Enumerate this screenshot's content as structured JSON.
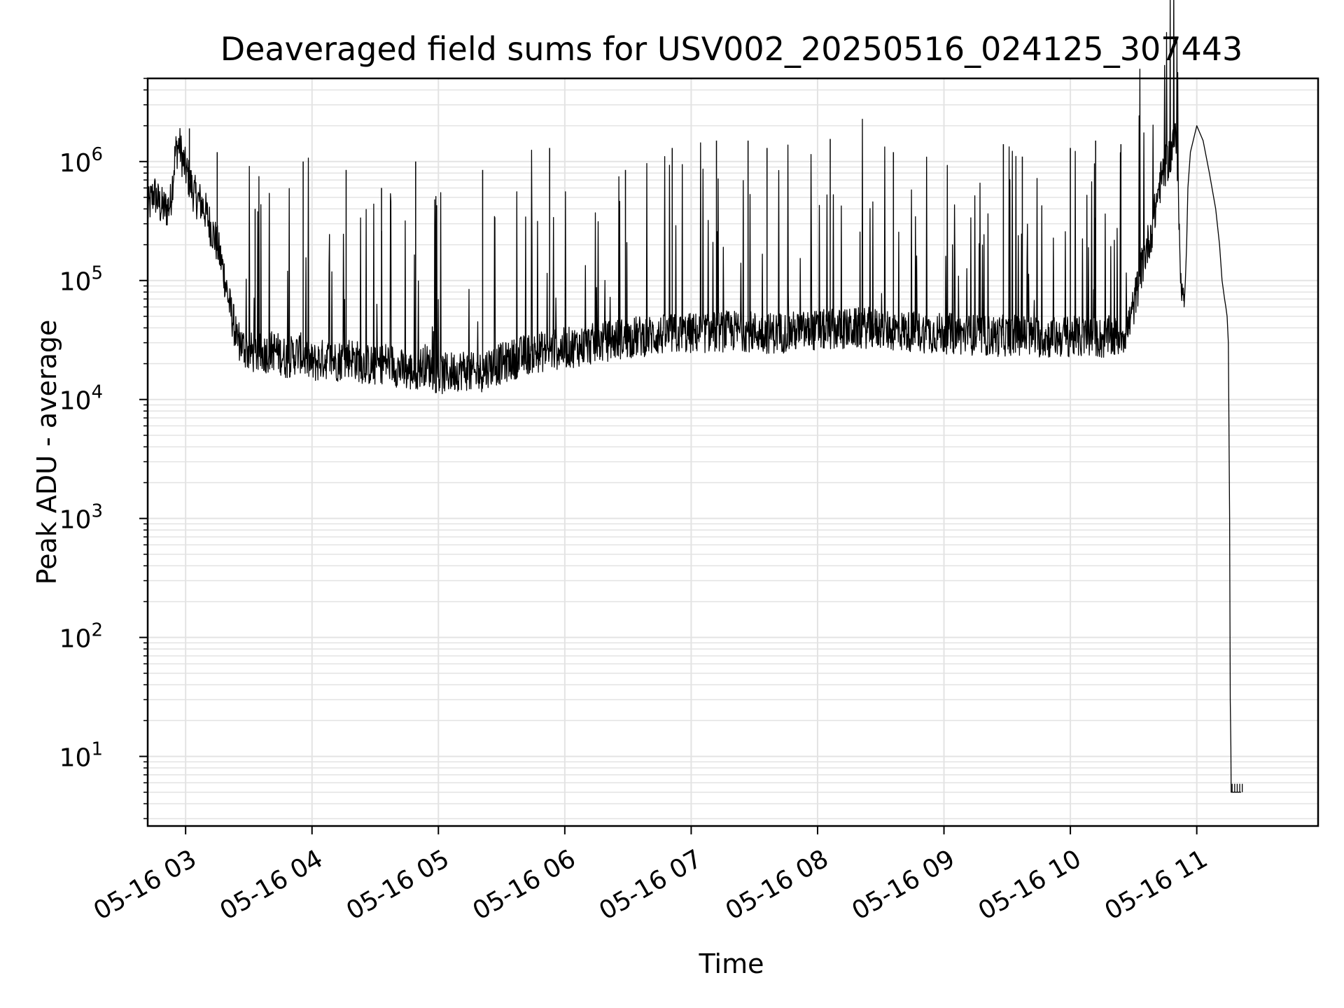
{
  "chart_data": {
    "type": "line",
    "title": "Deaveraged field sums for USV002_20250516_024125_307443",
    "xlabel": "Time",
    "ylabel": "Peak ADU - average",
    "yscale": "log",
    "ylim": [
      2.6,
      5000000
    ],
    "xlim_hours": [
      2.7,
      11.96
    ],
    "grid": true,
    "line_color": "#000000",
    "x_ticks": [
      {
        "label": "05-16 03",
        "hour": 3
      },
      {
        "label": "05-16 04",
        "hour": 4
      },
      {
        "label": "05-16 05",
        "hour": 5
      },
      {
        "label": "05-16 06",
        "hour": 6
      },
      {
        "label": "05-16 07",
        "hour": 7
      },
      {
        "label": "05-16 08",
        "hour": 8
      },
      {
        "label": "05-16 09",
        "hour": 9
      },
      {
        "label": "05-16 10",
        "hour": 10
      },
      {
        "label": "05-16 11",
        "hour": 11
      }
    ],
    "y_ticks": [
      {
        "base": "10",
        "exp": "1",
        "value": 10
      },
      {
        "base": "10",
        "exp": "2",
        "value": 100
      },
      {
        "base": "10",
        "exp": "3",
        "value": 1000
      },
      {
        "base": "10",
        "exp": "4",
        "value": 10000
      },
      {
        "base": "10",
        "exp": "5",
        "value": 100000
      },
      {
        "base": "10",
        "exp": "6",
        "value": 1000000
      }
    ],
    "series": [
      {
        "x": [
          2.7,
          2.72,
          2.75,
          2.8,
          2.85,
          2.88,
          2.92,
          2.95,
          2.98,
          3.02,
          3.05,
          3.08,
          3.12,
          3.15,
          3.2,
          3.25,
          3.3,
          3.35,
          3.4,
          3.45,
          3.5,
          3.6,
          3.7,
          3.8,
          3.9,
          4.0,
          4.1,
          4.2,
          4.3,
          4.4,
          4.5,
          4.6,
          4.7,
          4.8,
          4.9,
          5.0,
          5.1,
          5.2,
          5.3,
          5.4,
          5.5,
          5.6,
          5.7,
          5.8,
          5.9,
          6.0,
          6.2,
          6.4,
          6.6,
          6.8,
          7.0,
          7.2,
          7.4,
          7.6,
          7.8,
          8.0,
          8.2,
          8.4,
          8.6,
          8.8,
          9.0,
          9.2,
          9.4,
          9.6,
          9.8,
          10.0,
          10.1,
          10.2,
          10.25,
          10.3,
          10.35,
          10.4,
          10.45,
          10.5,
          10.55,
          10.6,
          10.65,
          10.7,
          10.75,
          10.8,
          10.82,
          10.84,
          10.85,
          10.86,
          10.88,
          10.9
        ],
        "y": [
          380000,
          450000,
          550000,
          420000,
          400000,
          450000,
          1200000,
          1400000,
          1000000,
          750000,
          600000,
          500000,
          450000,
          400000,
          280000,
          200000,
          120000,
          60000,
          35000,
          28000,
          25000,
          24000,
          26000,
          22000,
          25000,
          20000,
          22000,
          21000,
          23000,
          20000,
          19000,
          21000,
          18000,
          17000,
          20000,
          16000,
          17000,
          18000,
          16000,
          19000,
          20000,
          22000,
          24000,
          25000,
          26000,
          27000,
          29000,
          32000,
          34000,
          35000,
          36000,
          37000,
          38000,
          36000,
          37000,
          38000,
          39000,
          40000,
          38000,
          37000,
          36000,
          35000,
          34000,
          35000,
          33000,
          34000,
          33000,
          34000,
          32000,
          34000,
          33000,
          35000,
          38000,
          60000,
          110000,
          180000,
          280000,
          600000,
          900000,
          1200000,
          1700000,
          1300000,
          700000,
          300000,
          80000,
          60000
        ]
      }
    ],
    "spikes": [
      {
        "x": 3.03,
        "y": 1900000
      },
      {
        "x": 3.25,
        "y": 1200000
      },
      {
        "x": 3.55,
        "y": 400000
      },
      {
        "x": 3.93,
        "y": 1000000
      },
      {
        "x": 4.27,
        "y": 850000
      },
      {
        "x": 4.55,
        "y": 600000
      },
      {
        "x": 4.82,
        "y": 1000000
      },
      {
        "x": 5.35,
        "y": 850000
      },
      {
        "x": 5.88,
        "y": 1300000
      },
      {
        "x": 6.48,
        "y": 850000
      },
      {
        "x": 6.85,
        "y": 1300000
      },
      {
        "x": 7.2,
        "y": 1500000
      },
      {
        "x": 7.45,
        "y": 1500000
      },
      {
        "x": 7.6,
        "y": 1300000
      },
      {
        "x": 8.1,
        "y": 1550000
      },
      {
        "x": 8.6,
        "y": 1200000
      },
      {
        "x": 9.47,
        "y": 1400000
      },
      {
        "x": 9.62,
        "y": 1100000
      },
      {
        "x": 10.0,
        "y": 1300000
      },
      {
        "x": 10.2,
        "y": 1500000
      },
      {
        "x": 10.4,
        "y": 1400000
      }
    ],
    "tail": {
      "x": [
        10.9,
        10.91,
        10.92,
        10.93,
        10.95,
        11.0,
        11.05,
        11.1,
        11.15,
        11.18,
        11.2,
        11.22,
        11.23,
        11.24,
        11.25,
        11.26,
        11.265,
        11.27,
        11.272,
        11.275,
        11.28,
        11.3,
        11.35
      ],
      "y": [
        60000,
        100000,
        200000,
        600000,
        1200000,
        2000000,
        1500000,
        800000,
        400000,
        200000,
        100000,
        70000,
        60000,
        50000,
        30000,
        1000,
        30,
        12,
        5,
        5,
        5,
        5,
        5
      ]
    },
    "tail_ticks": [
      11.28,
      11.3,
      11.32,
      11.34,
      11.36
    ]
  }
}
